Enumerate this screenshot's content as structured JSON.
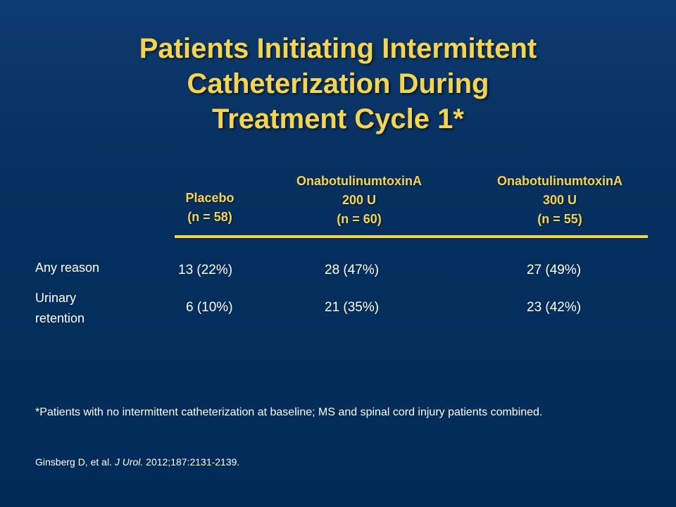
{
  "slide": {
    "title_lines": [
      "Patients Initiating Intermittent",
      "Catheterization During",
      "Treatment Cycle 1*"
    ],
    "table": {
      "columns": [
        {
          "lines": [
            "Placebo",
            "(n = 58)"
          ]
        },
        {
          "lines": [
            "OnabotulinumtoxinA",
            "200 U",
            "(n = 60)"
          ]
        },
        {
          "lines": [
            "OnabotulinumtoxinA",
            "300 U",
            "(n = 55)"
          ]
        }
      ],
      "rows": [
        {
          "label_lines": [
            "Any reason"
          ],
          "values": [
            "13 (22%)",
            "28 (47%)",
            "27 (49%)"
          ]
        },
        {
          "label_lines": [
            "Urinary",
            "retention"
          ],
          "values": [
            "6 (10%)",
            "21 (35%)",
            "23 (42%)"
          ]
        }
      ]
    },
    "footnote": "*Patients with no intermittent catheterization at baseline; MS and spinal cord injury patients combined.",
    "reference": {
      "authors": "Ginsberg D, et al.",
      "journal": "J Urol.",
      "citation": "2012;187:2131-2139."
    },
    "colors": {
      "background": "#002a57",
      "title": "#f6d44b",
      "text": "#ffffff"
    }
  }
}
